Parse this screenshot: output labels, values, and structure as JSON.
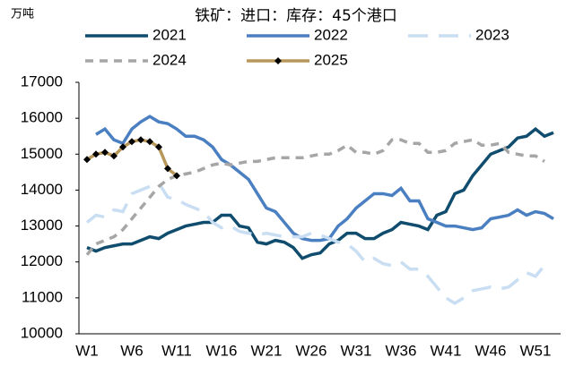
{
  "chart_data": {
    "type": "line",
    "title": "铁矿：进口：库存：45个港口",
    "y_unit": "万吨",
    "categories": [
      "W1",
      null,
      null,
      null,
      null,
      "W6",
      null,
      null,
      null,
      null,
      "W11",
      null,
      null,
      null,
      null,
      "W16",
      null,
      null,
      null,
      null,
      "W21",
      null,
      null,
      null,
      null,
      "W26",
      null,
      null,
      null,
      null,
      "W31",
      null,
      null,
      null,
      null,
      "W36",
      null,
      null,
      null,
      null,
      "W41",
      null,
      null,
      null,
      null,
      "W46",
      null,
      null,
      null,
      null,
      "W51",
      null,
      null
    ],
    "ylim": [
      10000,
      17000
    ],
    "yticks": [
      10000,
      11000,
      12000,
      13000,
      14000,
      15000,
      16000,
      17000
    ],
    "grid": false,
    "series": [
      {
        "name": "2021",
        "color": "#0f4c6e",
        "style": "solid",
        "values": [
          12400,
          12300,
          12400,
          12450,
          12500,
          12500,
          12600,
          12700,
          12650,
          12800,
          12900,
          13000,
          13050,
          13100,
          13100,
          13300,
          13300,
          13000,
          12950,
          12550,
          12500,
          12600,
          12550,
          12400,
          12100,
          12200,
          12250,
          12500,
          12600,
          12800,
          12800,
          12650,
          12650,
          12800,
          12900,
          13100,
          13050,
          13000,
          12900,
          13300,
          13400,
          13900,
          14000,
          14400,
          14700,
          15000,
          15100,
          15200,
          15450,
          15500,
          15700,
          15500,
          15600
        ]
      },
      {
        "name": "2022",
        "color": "#4a7fc1",
        "style": "solid",
        "values": [
          null,
          15550,
          15700,
          15400,
          15300,
          15700,
          15900,
          16050,
          15900,
          15850,
          15700,
          15500,
          15500,
          15400,
          15200,
          14850,
          14700,
          14500,
          14300,
          13900,
          13500,
          13400,
          13100,
          12800,
          12650,
          12600,
          12600,
          12650,
          13000,
          13200,
          13500,
          13700,
          13900,
          13900,
          13850,
          14050,
          13700,
          13700,
          13200,
          13100,
          13000,
          13000,
          12950,
          12900,
          12950,
          13200,
          13250,
          13300,
          13450,
          13300,
          13400,
          13350,
          13200
        ]
      },
      {
        "name": "2023",
        "color": "#c9def2",
        "style": "longdash",
        "values": [
          13100,
          13300,
          13250,
          13450,
          13400,
          13900,
          14000,
          14100,
          14200,
          13800,
          13750,
          13600,
          13500,
          13400,
          13100,
          12950,
          13000,
          12850,
          12800,
          12750,
          12800,
          12750,
          12700,
          12700,
          12700,
          12800,
          12750,
          12650,
          12550,
          12500,
          12300,
          12000,
          12100,
          11950,
          11900,
          12000,
          11800,
          11800,
          11600,
          11300,
          11000,
          10850,
          11000,
          11200,
          11250,
          11300,
          11250,
          11300,
          11500,
          11700,
          11600,
          11900,
          null
        ]
      },
      {
        "name": "2024",
        "color": "#a6a6a6",
        "style": "dash",
        "values": [
          12200,
          12500,
          12600,
          12700,
          12900,
          13200,
          13500,
          13800,
          14100,
          14300,
          14400,
          14450,
          14500,
          14600,
          14700,
          14750,
          14700,
          14750,
          14800,
          14800,
          14850,
          14900,
          14900,
          14900,
          14900,
          14950,
          15000,
          15000,
          15100,
          15250,
          15050,
          15050,
          15000,
          15100,
          15400,
          15400,
          15300,
          15300,
          15050,
          15050,
          15100,
          15300,
          15350,
          15400,
          15250,
          15250,
          15300,
          15050,
          15000,
          14950,
          14950,
          14800,
          null
        ]
      },
      {
        "name": "2025",
        "color": "#b8975a",
        "style": "solid",
        "marker": "diamond",
        "values": [
          14850,
          15000,
          15050,
          14950,
          15200,
          15350,
          15400,
          15350,
          15200,
          14600,
          14400,
          null,
          null,
          null,
          null,
          null,
          null,
          null,
          null,
          null,
          null,
          null,
          null,
          null,
          null,
          null,
          null,
          null,
          null,
          null,
          null,
          null,
          null,
          null,
          null,
          null,
          null,
          null,
          null,
          null,
          null,
          null,
          null,
          null,
          null,
          null,
          null,
          null,
          null,
          null,
          null,
          null,
          null
        ]
      }
    ]
  }
}
